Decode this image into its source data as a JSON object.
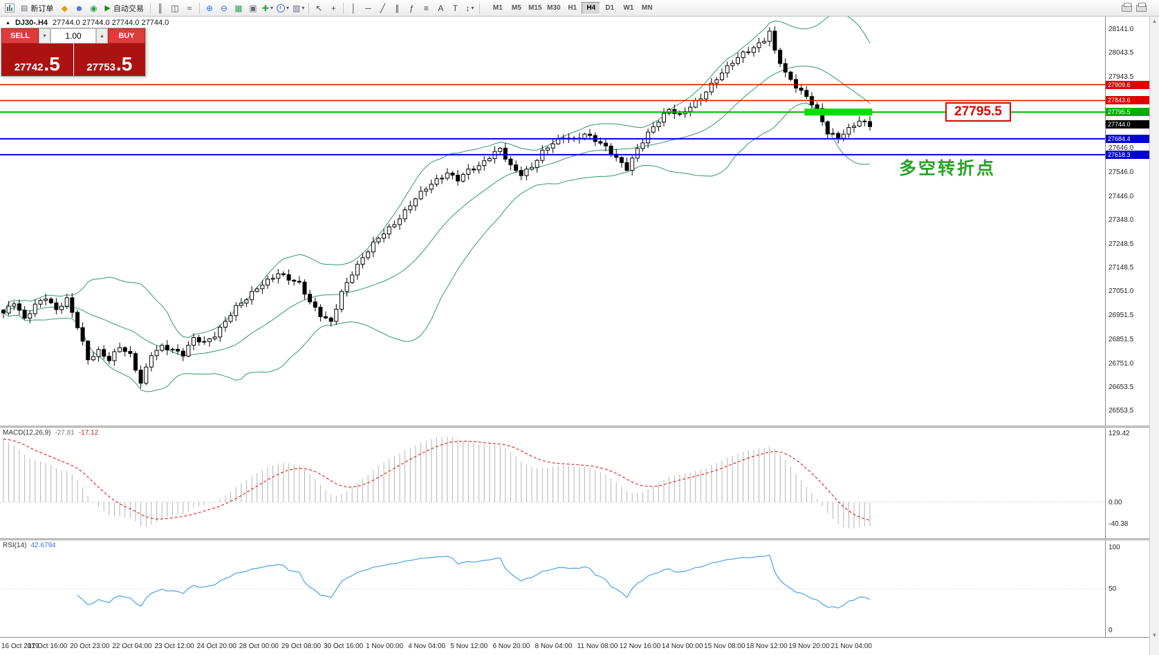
{
  "toolbar": {
    "new_order_label": "新订单",
    "autotrading_label": "自动交易",
    "timeframes": [
      "M1",
      "M5",
      "M15",
      "M30",
      "H1",
      "H4",
      "D1",
      "W1",
      "MN"
    ],
    "active_timeframe": "H4"
  },
  "icons": {
    "new_order_doc": "▤",
    "metaeditor": "◆",
    "community": "☻",
    "market": "◉",
    "autotrading_play": "▶",
    "bar_chart": "║",
    "candle_chart": "◫",
    "line_chart": "≈",
    "zoom_in": "⊕",
    "zoom_out": "⊖",
    "tile_windows": "▦",
    "cascade_windows": "▣",
    "indicators": "✚",
    "templates": "▥",
    "dropdown": "▾",
    "cursor": "↖",
    "crosshair": "+",
    "vline": "│",
    "hline": "─",
    "trendline": "╱",
    "channel": "∥",
    "fibonacci": "ƒ",
    "shapes": "≡",
    "text": "A",
    "label": "T",
    "arrows": "↕",
    "volume_down": "▼",
    "volume_up": "▲",
    "symbol_collapse": "▲",
    "scroll_up": "▲",
    "scroll_down": "▼"
  },
  "chart_header": {
    "symbol": "DJ30-.H4",
    "ohlc": "27744.0 27744.0 27744.0 27744.0"
  },
  "one_click": {
    "sell_label": "SELL",
    "buy_label": "BUY",
    "volume": "1.00",
    "sell_price_main": "27742",
    "sell_price_frac": ".5",
    "buy_price_main": "27753",
    "buy_price_frac": ".5"
  },
  "annotations": {
    "callout_price": "27795.5",
    "note_text": "多空转折点",
    "note_color": "#27a227"
  },
  "price_axis": {
    "ticks": [
      "28141.0",
      "28043.5",
      "27943.5",
      "27843.5",
      "27744.0",
      "27646.0",
      "27546.0",
      "27446.0",
      "27348.0",
      "27248.5",
      "27148.5",
      "27051.0",
      "26951.5",
      "26851.5",
      "26751.0",
      "26653.5",
      "26553.5"
    ],
    "line_tags": [
      {
        "label": "27909.6",
        "value": 27909.6,
        "color": "#e00000",
        "current": false
      },
      {
        "label": "27843.6",
        "value": 27843.6,
        "color": "#e00000",
        "current": false
      },
      {
        "label": "27795.5",
        "value": 27795.5,
        "color": "#00b000",
        "current": false
      },
      {
        "label": "27744.0",
        "value": 27744.0,
        "color": "#000000",
        "current": true
      },
      {
        "label": "27684.4",
        "value": 27684.4,
        "color": "#0000d8",
        "current": false
      },
      {
        "label": "27618.3",
        "value": 27618.3,
        "color": "#0000d8",
        "current": false
      }
    ]
  },
  "macd_panel": {
    "label": "MACD(12,26,9)",
    "value_main": "-27.81",
    "value_signal": "-17.12",
    "scale": [
      "129.42",
      "0.00",
      "-40.38"
    ]
  },
  "rsi_panel": {
    "label": "RSI(14)",
    "value": "42.6794",
    "scale": [
      "100",
      "50",
      "0"
    ]
  },
  "chart_data": {
    "type": "candlestick-with-indicators",
    "symbol": "DJ30-",
    "timeframe": "H4",
    "bars": 165,
    "price_range": [
      26553.5,
      28141.0
    ],
    "current_price": 27744.0,
    "close_anchors": [
      [
        0,
        26960
      ],
      [
        2,
        27000
      ],
      [
        4,
        26930
      ],
      [
        6,
        26995
      ],
      [
        8,
        27030
      ],
      [
        10,
        26975
      ],
      [
        12,
        27015
      ],
      [
        14,
        26900
      ],
      [
        16,
        26765
      ],
      [
        18,
        26805
      ],
      [
        20,
        26770
      ],
      [
        22,
        26820
      ],
      [
        24,
        26780
      ],
      [
        26,
        26665
      ],
      [
        28,
        26790
      ],
      [
        30,
        26825
      ],
      [
        32,
        26810
      ],
      [
        34,
        26785
      ],
      [
        36,
        26850
      ],
      [
        38,
        26835
      ],
      [
        40,
        26870
      ],
      [
        42,
        26930
      ],
      [
        44,
        26985
      ],
      [
        46,
        27015
      ],
      [
        48,
        27060
      ],
      [
        50,
        27095
      ],
      [
        52,
        27130
      ],
      [
        54,
        27105
      ],
      [
        56,
        27080
      ],
      [
        58,
        27000
      ],
      [
        60,
        26950
      ],
      [
        62,
        26925
      ],
      [
        64,
        27050
      ],
      [
        66,
        27125
      ],
      [
        68,
        27185
      ],
      [
        70,
        27245
      ],
      [
        72,
        27295
      ],
      [
        74,
        27335
      ],
      [
        76,
        27385
      ],
      [
        78,
        27435
      ],
      [
        80,
        27475
      ],
      [
        82,
        27510
      ],
      [
        84,
        27545
      ],
      [
        86,
        27520
      ],
      [
        88,
        27555
      ],
      [
        90,
        27565
      ],
      [
        92,
        27605
      ],
      [
        94,
        27645
      ],
      [
        96,
        27575
      ],
      [
        98,
        27540
      ],
      [
        100,
        27565
      ],
      [
        102,
        27625
      ],
      [
        104,
        27665
      ],
      [
        106,
        27695
      ],
      [
        108,
        27685
      ],
      [
        110,
        27705
      ],
      [
        112,
        27675
      ],
      [
        114,
        27645
      ],
      [
        116,
        27605
      ],
      [
        118,
        27565
      ],
      [
        120,
        27645
      ],
      [
        122,
        27705
      ],
      [
        124,
        27755
      ],
      [
        126,
        27805
      ],
      [
        128,
        27785
      ],
      [
        130,
        27825
      ],
      [
        132,
        27855
      ],
      [
        134,
        27905
      ],
      [
        136,
        27955
      ],
      [
        138,
        28005
      ],
      [
        140,
        28045
      ],
      [
        142,
        28065
      ],
      [
        144,
        28095
      ],
      [
        145,
        28125
      ],
      [
        146,
        28045
      ],
      [
        148,
        27955
      ],
      [
        150,
        27905
      ],
      [
        152,
        27865
      ],
      [
        154,
        27805
      ],
      [
        156,
        27705
      ],
      [
        158,
        27685
      ],
      [
        160,
        27725
      ],
      [
        162,
        27765
      ],
      [
        164,
        27744
      ]
    ],
    "hlines": [
      {
        "price": 27909.6,
        "color": "#e00000",
        "width": 1.5
      },
      {
        "price": 27843.6,
        "color": "#e00000",
        "width": 1.5
      },
      {
        "price": 27795.5,
        "color": "#00b000",
        "width": 2
      },
      {
        "price": 27684.4,
        "color": "#0000d8",
        "width": 2
      },
      {
        "price": 27618.3,
        "color": "#0000d8",
        "width": 2
      }
    ],
    "highlight": {
      "bar_start": 152,
      "bar_end": 164,
      "price": 27795.5,
      "color": "#00e000"
    },
    "bollinger": {
      "period": 20,
      "deviation": 2,
      "color": "#339966"
    },
    "macd": {
      "fast": 12,
      "slow": 26,
      "signal": 9,
      "current_main": -27.81,
      "current_signal": -17.12,
      "scale_max": 129.42,
      "scale_min": -40.38,
      "hist_color": "#b4b4b4",
      "signal_color": "#e00000"
    },
    "rsi": {
      "period": 14,
      "current": 42.6794,
      "color": "#4aa3e8",
      "range": [
        0,
        100
      ]
    },
    "time_labels": [
      "16 Oct 2019",
      "17 Oct 16:00",
      "20 Oct 23:00",
      "22 Oct 04:00",
      "23 Oct 12:00",
      "24 Oct 20:00",
      "28 Oct 00:00",
      "29 Oct 08:00",
      "30 Oct 16:00",
      "1 Nov 00:00",
      "4 Nov 04:00",
      "5 Nov 12:00",
      "6 Nov 20:00",
      "8 Nov 04:00",
      "11 Nov 08:00",
      "12 Nov 16:00",
      "14 Nov 00:00",
      "15 Nov 08:00",
      "18 Nov 12:00",
      "19 Nov 20:00",
      "21 Nov 04:00"
    ]
  }
}
